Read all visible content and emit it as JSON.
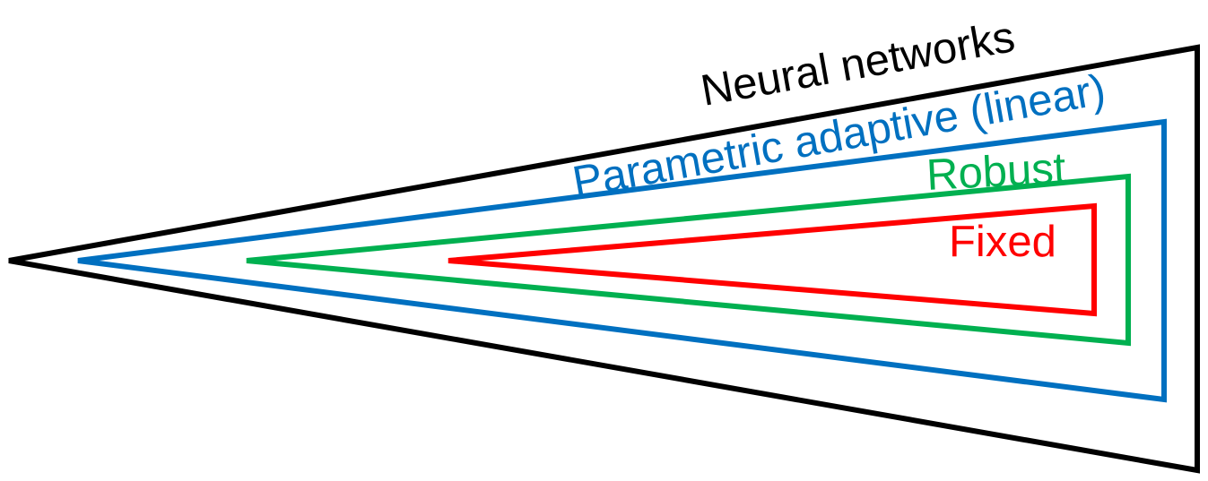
{
  "diagram": {
    "layers": [
      {
        "key": "neural",
        "label": "Neural networks",
        "color": "#000000"
      },
      {
        "key": "parametric",
        "label": "Parametric adaptive (linear)",
        "color": "#0070C0"
      },
      {
        "key": "robust",
        "label": "Robust",
        "color": "#00B050"
      },
      {
        "key": "fixed",
        "label": "Fixed",
        "color": "#FF0000"
      }
    ]
  }
}
